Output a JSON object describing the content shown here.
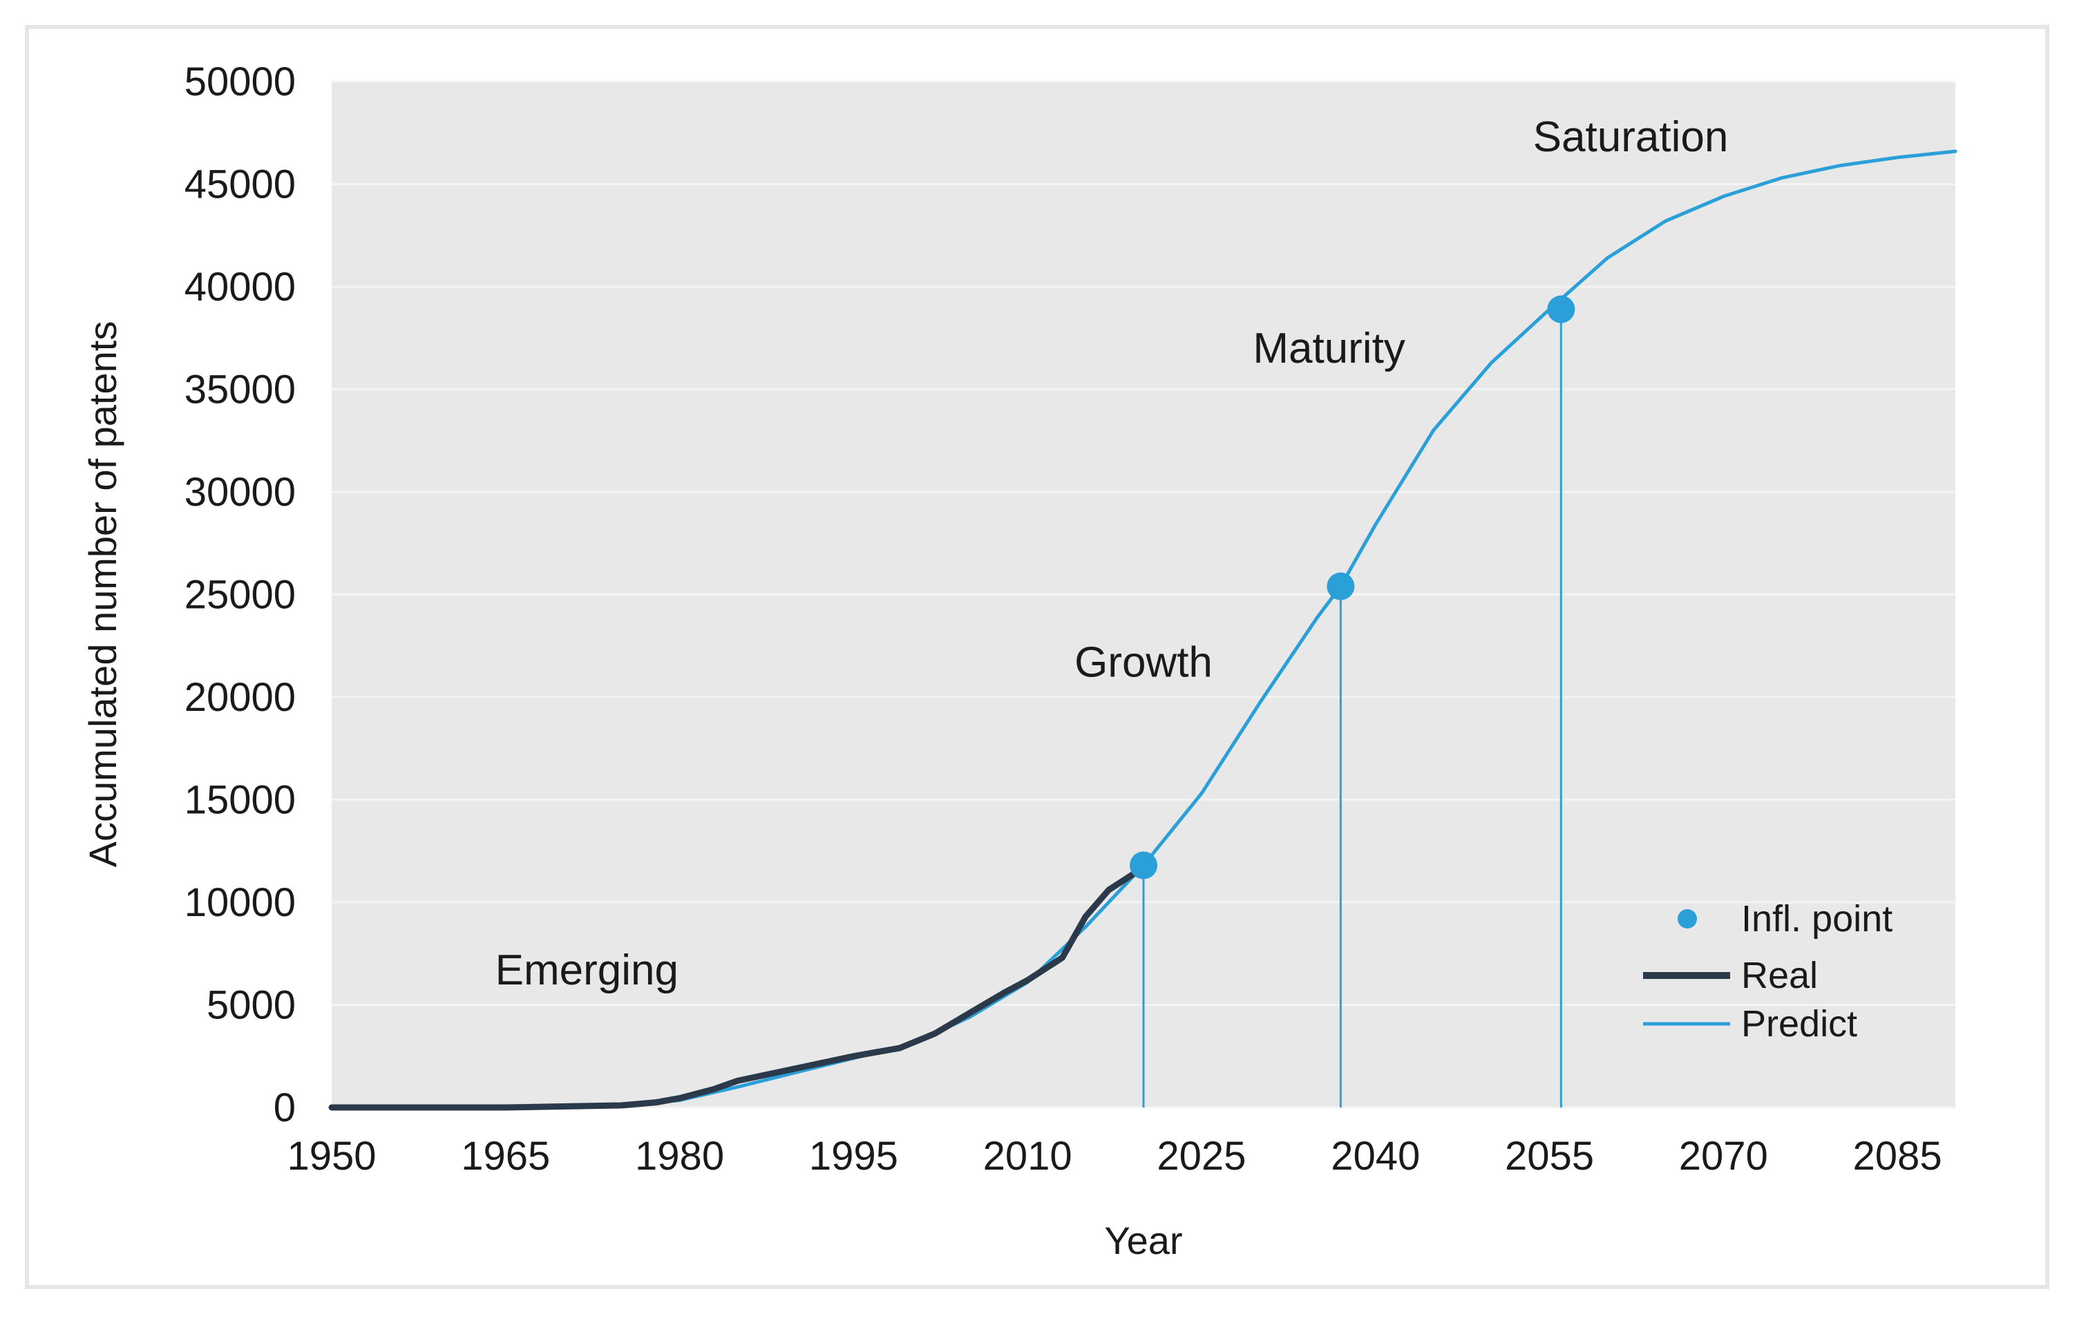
{
  "chart_data": {
    "type": "line",
    "title": "",
    "xlabel": "Year",
    "ylabel": "Accumulated number of patents",
    "xlim": [
      1950,
      2090
    ],
    "ylim": [
      0,
      50000
    ],
    "xticks": [
      1950,
      1965,
      1980,
      1995,
      2010,
      2025,
      2040,
      2055,
      2070,
      2085
    ],
    "yticks": [
      0,
      5000,
      10000,
      15000,
      20000,
      25000,
      30000,
      35000,
      40000,
      45000,
      50000
    ],
    "grid": true,
    "legend_position": "bottom-right",
    "series": [
      {
        "name": "Real",
        "color": "#2b3a4a",
        "x": [
          1950,
          1955,
          1960,
          1965,
          1970,
          1975,
          1978,
          1980,
          1983,
          1985,
          1990,
          1995,
          1999,
          2002,
          2005,
          2008,
          2010,
          2013,
          2015,
          2017,
          2020
        ],
        "y": [
          0,
          0,
          0,
          0,
          50,
          100,
          250,
          450,
          900,
          1300,
          1900,
          2500,
          2900,
          3600,
          4600,
          5600,
          6200,
          7300,
          9300,
          10600,
          11700
        ]
      },
      {
        "name": "Predict",
        "color": "#2a9fd8",
        "x": [
          1957,
          1965,
          1970,
          1975,
          1980,
          1985,
          1990,
          1995,
          2000,
          2005,
          2010,
          2015,
          2020,
          2025,
          2030,
          2035,
          2037,
          2040,
          2045,
          2050,
          2055,
          2060,
          2065,
          2070,
          2075,
          2080,
          2085,
          2090
        ],
        "y": [
          0,
          0,
          50,
          100,
          350,
          1000,
          1700,
          2400,
          3100,
          4400,
          6100,
          8800,
          11800,
          15300,
          19700,
          23900,
          25400,
          28400,
          33000,
          36300,
          38900,
          41400,
          43200,
          44400,
          45300,
          45900,
          46300,
          46600
        ]
      }
    ],
    "inflection_points": {
      "name": "Infl. point",
      "color": "#2a9fd8",
      "x": [
        2020,
        2037,
        2056
      ],
      "y": [
        11800,
        25400,
        38900
      ]
    },
    "annotations": [
      {
        "text": "Emerging",
        "x": 1972,
        "y": 6000
      },
      {
        "text": "Growth",
        "x": 2020,
        "y": 21000
      },
      {
        "text": "Maturity",
        "x": 2036,
        "y": 36300
      },
      {
        "text": "Saturation",
        "x": 2062,
        "y": 46600
      }
    ]
  }
}
